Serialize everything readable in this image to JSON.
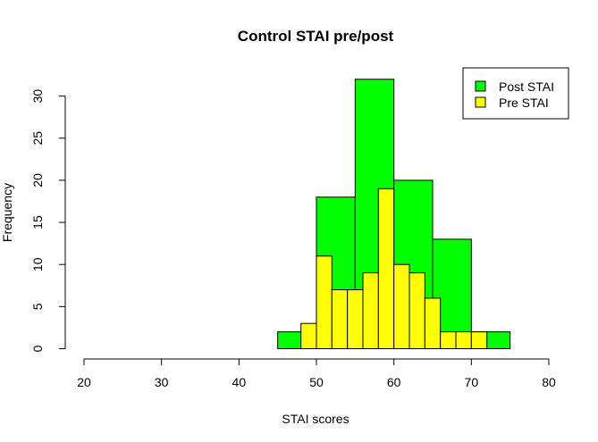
{
  "chart_data": {
    "type": "bar",
    "title": "Control STAI pre/post",
    "xlabel": "STAI scores",
    "ylabel": "Frequency",
    "xlim": [
      20,
      80
    ],
    "ylim": [
      0,
      32
    ],
    "x_ticks": [
      20,
      30,
      40,
      50,
      60,
      70,
      80
    ],
    "y_ticks": [
      0,
      5,
      10,
      15,
      20,
      25,
      30
    ],
    "grid": false,
    "legend_position": "top-right",
    "series": [
      {
        "name": "Post STAI",
        "color": "#00ff00",
        "bins": [
          {
            "x0": 45,
            "x1": 50,
            "value": 2
          },
          {
            "x0": 50,
            "x1": 55,
            "value": 18
          },
          {
            "x0": 55,
            "x1": 60,
            "value": 32
          },
          {
            "x0": 60,
            "x1": 65,
            "value": 20
          },
          {
            "x0": 65,
            "x1": 70,
            "value": 13
          },
          {
            "x0": 70,
            "x1": 75,
            "value": 2
          }
        ]
      },
      {
        "name": "Pre STAI",
        "color": "#ffff00",
        "bins": [
          {
            "x0": 48,
            "x1": 50,
            "value": 3
          },
          {
            "x0": 50,
            "x1": 52,
            "value": 11
          },
          {
            "x0": 52,
            "x1": 54,
            "value": 7
          },
          {
            "x0": 54,
            "x1": 56,
            "value": 7
          },
          {
            "x0": 56,
            "x1": 58,
            "value": 9
          },
          {
            "x0": 58,
            "x1": 60,
            "value": 19
          },
          {
            "x0": 60,
            "x1": 62,
            "value": 10
          },
          {
            "x0": 62,
            "x1": 64,
            "value": 9
          },
          {
            "x0": 64,
            "x1": 66,
            "value": 6
          },
          {
            "x0": 66,
            "x1": 68,
            "value": 2
          },
          {
            "x0": 68,
            "x1": 70,
            "value": 2
          },
          {
            "x0": 70,
            "x1": 72,
            "value": 2
          }
        ]
      }
    ]
  }
}
